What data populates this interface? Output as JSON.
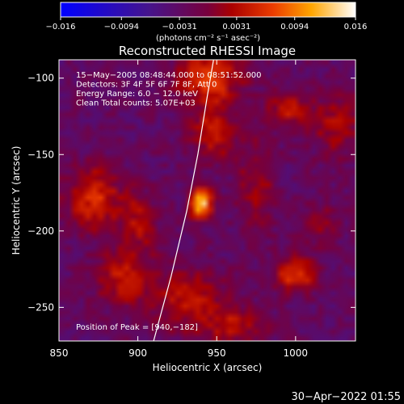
{
  "colorbar": {
    "ticks": [
      "−0.016",
      "−0.0094",
      "−0.0031",
      "0.0031",
      "0.0094",
      "0.016"
    ],
    "tick_values": [
      -0.016,
      -0.0094,
      -0.0031,
      0.0031,
      0.0094,
      0.016
    ],
    "range": [
      -0.016,
      0.016
    ],
    "unit_label": "(photons cm⁻² s⁻¹ asec⁻²)",
    "colors": [
      "#0000ff",
      "#5a1aa0",
      "#aa0000",
      "#ff4400",
      "#ffa000",
      "#ffffff"
    ]
  },
  "chart_data": {
    "type": "heatmap",
    "title": "Reconstructed RHESSI Image",
    "xlabel": "Heliocentric X (arcsec)",
    "ylabel": "Heliocentric Y (arcsec)",
    "xlim": [
      850,
      1038
    ],
    "ylim": [
      -272,
      -88
    ],
    "xticks": [
      850,
      900,
      950,
      1000
    ],
    "yticks": [
      -100,
      -150,
      -200,
      -250
    ],
    "xtick_labels": [
      "850",
      "900",
      "950",
      "1000"
    ],
    "ytick_labels": [
      "−100",
      "−150",
      "−200",
      "−250"
    ],
    "info_lines": [
      "15−May−2005 08:48:44.000 to 08:51:52.000",
      "Detectors: 3F 4F 5F 6F 7F 8F, Att 0",
      "Energy Range: 6.0 − 12.0 keV",
      "Clean    Total counts: 5.07E+03"
    ],
    "peak_text": "Position of Peak = [940,−182]",
    "peak": {
      "x": 940,
      "y": -182
    },
    "limb_points": [
      [
        910,
        -272
      ],
      [
        921,
        -230
      ],
      [
        931,
        -187
      ],
      [
        938,
        -150
      ],
      [
        944,
        -112
      ],
      [
        948,
        -88
      ]
    ],
    "sources": [
      {
        "x": 940,
        "y": -182,
        "sx": 5,
        "sy": 7,
        "amp": 0.016
      },
      {
        "x": 945,
        "y": -100,
        "sx": 14,
        "sy": 12,
        "amp": 0.0095
      },
      {
        "x": 948,
        "y": -135,
        "sx": 10,
        "sy": 12,
        "amp": 0.0075
      },
      {
        "x": 872,
        "y": -178,
        "sx": 12,
        "sy": 14,
        "amp": 0.0085
      },
      {
        "x": 995,
        "y": -120,
        "sx": 9,
        "sy": 8,
        "amp": 0.0065
      },
      {
        "x": 1000,
        "y": -228,
        "sx": 9,
        "sy": 8,
        "amp": 0.0095
      },
      {
        "x": 930,
        "y": -245,
        "sx": 18,
        "sy": 14,
        "amp": 0.006
      },
      {
        "x": 890,
        "y": -230,
        "sx": 12,
        "sy": 12,
        "amp": 0.0065
      },
      {
        "x": 900,
        "y": -195,
        "sx": 8,
        "sy": 14,
        "amp": 0.0055
      },
      {
        "x": 975,
        "y": -170,
        "sx": 8,
        "sy": 20,
        "amp": 0.005
      },
      {
        "x": 1025,
        "y": -130,
        "sx": 10,
        "sy": 14,
        "amp": 0.0055
      },
      {
        "x": 1015,
        "y": -195,
        "sx": 8,
        "sy": 10,
        "amp": 0.004
      },
      {
        "x": 960,
        "y": -262,
        "sx": 14,
        "sy": 8,
        "amp": 0.0055
      }
    ]
  },
  "timestamp": "30−Apr−2022 01:55"
}
